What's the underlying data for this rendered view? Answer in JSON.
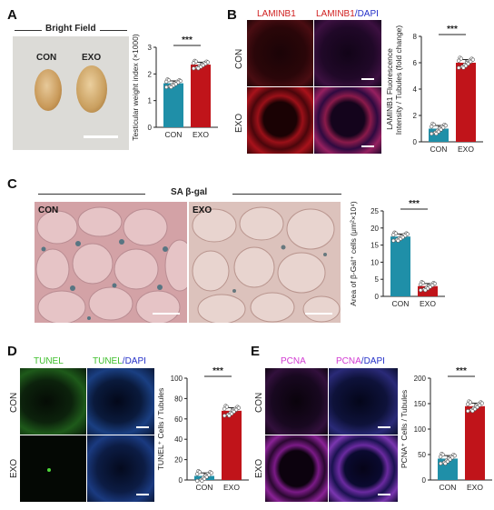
{
  "panels": {
    "A": {
      "letter": "A",
      "title": "Bright Field",
      "con_label": "CON",
      "exo_label": "EXO"
    },
    "B": {
      "letter": "B",
      "col1": "LAMINB1",
      "col2_part1": "LAMINB1",
      "col2_part2": "/DAPI",
      "row1": "CON",
      "row2": "EXO"
    },
    "C": {
      "letter": "C",
      "title": "SA β-gal",
      "con_label": "CON",
      "exo_label": "EXO"
    },
    "D": {
      "letter": "D",
      "col1": "TUNEL",
      "col2_part1": "TUNEL",
      "col2_part2": "/DAPI",
      "row1": "CON",
      "row2": "EXO"
    },
    "E": {
      "letter": "E",
      "col1": "PCNA",
      "col2_part1": "PCNA",
      "col2_part2": "/DAPI",
      "row1": "CON",
      "row2": "EXO"
    }
  },
  "colors": {
    "con": "#1f8fa8",
    "exo": "#c0141a"
  },
  "chart_data": [
    {
      "id": "A",
      "type": "bar",
      "categories": [
        "CON",
        "EXO"
      ],
      "values": [
        1.65,
        2.35
      ],
      "ylabel": "Testicular weight index (×1000)",
      "ylim": [
        0,
        3
      ],
      "yticks": [
        "0",
        "1",
        "2",
        "3"
      ],
      "significance": "***"
    },
    {
      "id": "B",
      "type": "bar",
      "categories": [
        "CON",
        "EXO"
      ],
      "values": [
        1.0,
        6.0
      ],
      "ylabel": "LAMINB1 Fluorescence Intensity / Tubules (fold change)",
      "ylim": [
        0,
        8
      ],
      "yticks": [
        "0",
        "2",
        "4",
        "6",
        "8"
      ],
      "significance": "***"
    },
    {
      "id": "C",
      "type": "bar",
      "categories": [
        "CON",
        "EXO"
      ],
      "values": [
        17.5,
        3.0
      ],
      "ylabel": "Area of β-Gal⁺ cells (μm²×10⁴)",
      "ylim": [
        0,
        25
      ],
      "yticks": [
        "0",
        "5",
        "10",
        "15",
        "20",
        "25"
      ],
      "significance": "***"
    },
    {
      "id": "D",
      "type": "bar",
      "categories": [
        "CON",
        "EXO"
      ],
      "values": [
        4,
        68
      ],
      "ylabel": "TUNEL⁺ Cells / Tubules",
      "ylim": [
        0,
        100
      ],
      "yticks": [
        "0",
        "20",
        "40",
        "60",
        "80",
        "100"
      ],
      "significance": "***"
    },
    {
      "id": "E",
      "type": "bar",
      "categories": [
        "CON",
        "EXO"
      ],
      "values": [
        42,
        145
      ],
      "ylabel": "PCNA⁺ Cells / Tubules",
      "ylim": [
        0,
        200
      ],
      "yticks": [
        "0",
        "50",
        "100",
        "150",
        "200"
      ],
      "significance": "***"
    }
  ]
}
